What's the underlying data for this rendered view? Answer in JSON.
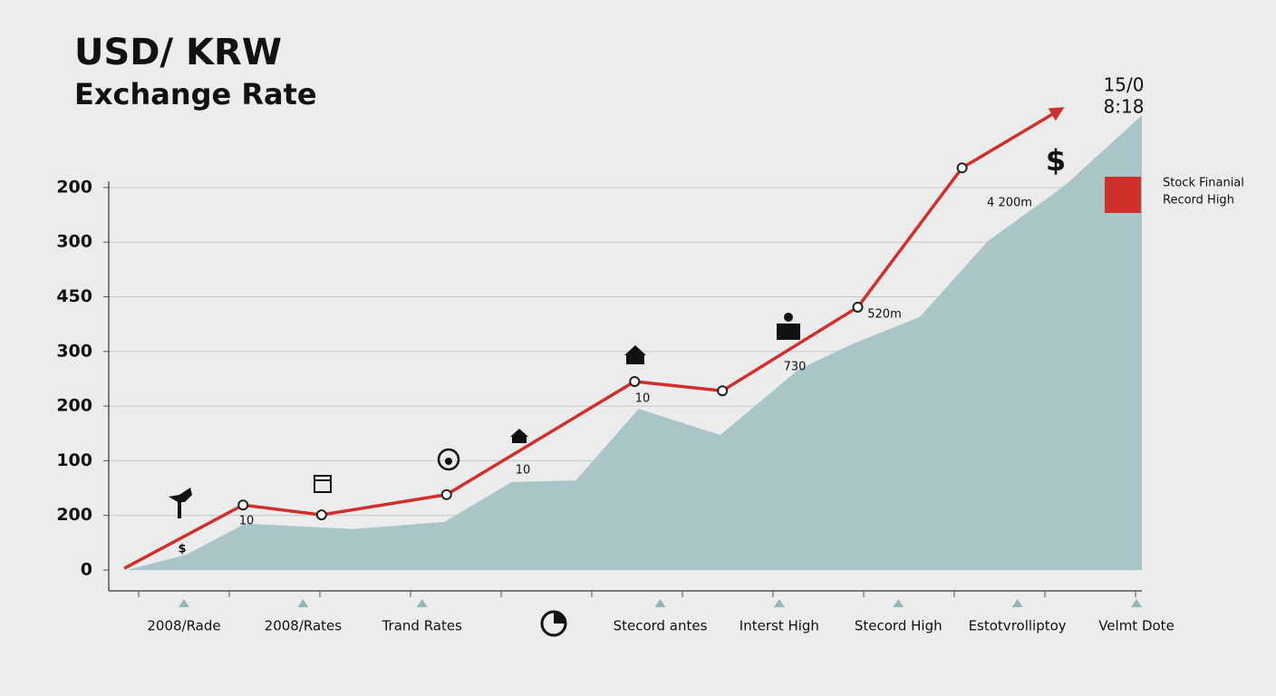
{
  "chart_data": {
    "type": "line",
    "title": "USD/ KRW",
    "subtitle": "Exchange Rate",
    "y_labels": [
      "0",
      "200",
      "100",
      "200",
      "300",
      "450",
      "300",
      "200"
    ],
    "ylim": [
      0,
      8.5
    ],
    "xlim": [
      0,
      100
    ],
    "grid": true,
    "categories": [
      "2008/Rade",
      "2008/Rates",
      "Trand Rates",
      null,
      "Stecord antes",
      "Interst High",
      "Stecord High",
      "Estotvrolliptoy",
      "Velmt Dote"
    ],
    "series": [
      {
        "name": "Exchange Rate",
        "color": "#d12f2c",
        "x": [
          1.5,
          13,
          20.6,
          32.7,
          50.9,
          59.4,
          72.5,
          82.6,
          92.5
        ],
        "values": [
          0.03,
          1.19,
          1.01,
          1.38,
          3.45,
          3.28,
          4.81,
          7.36,
          8.47
        ]
      },
      {
        "name": "Stock Finanial Record High",
        "color": "#a9c5c8",
        "x": [
          1.75,
          7.5,
          13.2,
          23.7,
          32.5,
          39,
          45.2,
          51.3,
          59.2,
          66.7,
          71.9,
          78.5,
          85.1,
          92.5,
          100
        ],
        "values": [
          0,
          0.28,
          0.85,
          0.75,
          0.88,
          1.61,
          1.64,
          2.95,
          2.47,
          3.66,
          4.13,
          4.63,
          6.02,
          7.03,
          8.32
        ]
      }
    ],
    "legend": {
      "color": "#d12f2c",
      "lines": [
        "Stock Finanial",
        "Record High"
      ]
    },
    "annotations": [
      "$",
      "10",
      "10",
      "10",
      "730",
      "520m",
      "4 200m",
      "15/0",
      "8:18",
      "$"
    ]
  }
}
